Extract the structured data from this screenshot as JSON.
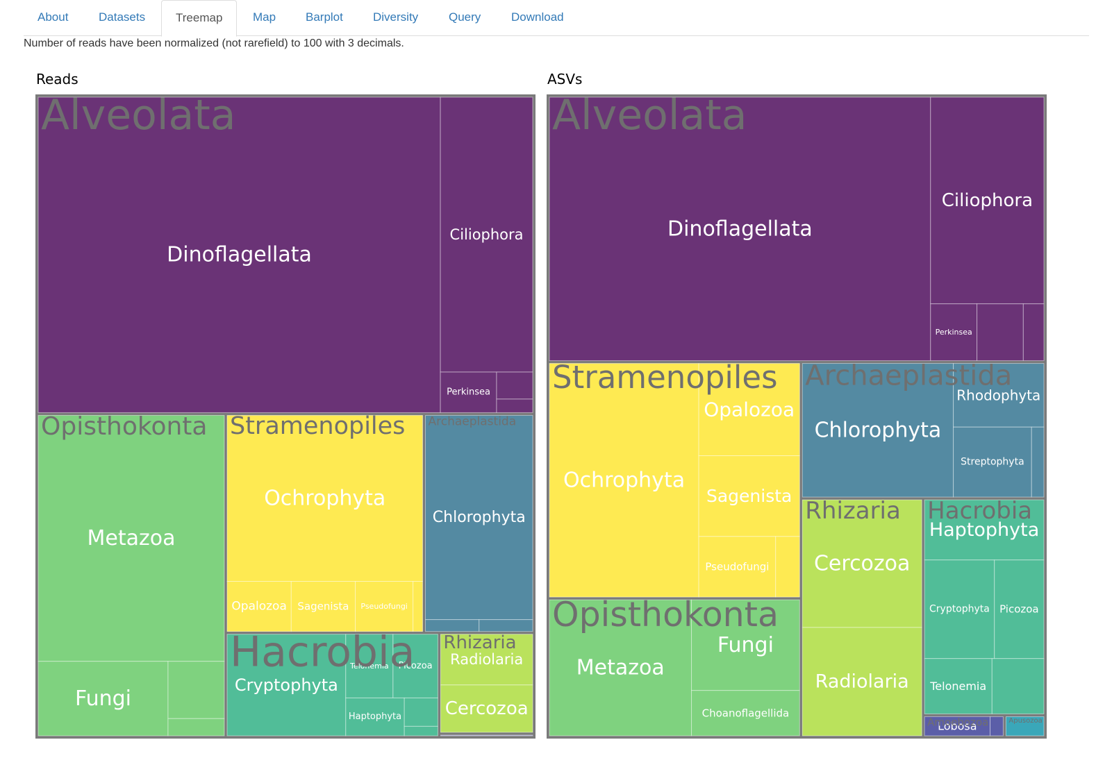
{
  "nav": {
    "tabs": [
      {
        "label": "About",
        "active": false
      },
      {
        "label": "Datasets",
        "active": false
      },
      {
        "label": "Treemap",
        "active": true
      },
      {
        "label": "Map",
        "active": false
      },
      {
        "label": "Barplot",
        "active": false
      },
      {
        "label": "Diversity",
        "active": false
      },
      {
        "label": "Query",
        "active": false
      },
      {
        "label": "Download",
        "active": false
      }
    ]
  },
  "note": "Number of reads have been normalized (not rarefield) to 100 with 3 decimals.",
  "colors": {
    "Alveolata": "#6a3376",
    "Opisthokonta": "#7fd27f",
    "Hacrobia": "#51bd98",
    "Archaeplastida": "#548aa2",
    "Stramenopiles": "#feea52",
    "Rhizaria": "#bae25c",
    "Amoebozoa": "#5b5ea8",
    "Apusozoa": "#3aa7b9",
    "group_label": "#6f6f6f",
    "leaf_label": "#ffffff",
    "border": "#7a7a7a",
    "tab_link": "#337ab7"
  },
  "chart_data": [
    {
      "type": "treemap",
      "title": "Reads",
      "groups": [
        {
          "name": "Alveolata",
          "children": [
            {
              "name": "Dinoflagellata",
              "value": 39.0
            },
            {
              "name": "Ciliophora",
              "value": 7.8
            },
            {
              "name": "Perkinsea",
              "value": 0.7
            },
            {
              "name": "",
              "value": 0.3
            },
            {
              "name": "",
              "value": 0.15
            }
          ]
        },
        {
          "name": "Opisthokonta",
          "children": [
            {
              "name": "Metazoa",
              "value": 14.2
            },
            {
              "name": "Fungi",
              "value": 3.0
            },
            {
              "name": "",
              "value": 1.0
            },
            {
              "name": "",
              "value": 0.3
            }
          ]
        },
        {
          "name": "Stramenopiles",
          "children": [
            {
              "name": "Ochrophyta",
              "value": 10.1
            },
            {
              "name": "Opalozoa",
              "value": 1.0
            },
            {
              "name": "Sagenista",
              "value": 1.0
            },
            {
              "name": "Pseudofungi",
              "value": 0.9
            },
            {
              "name": "",
              "value": 0.15
            }
          ]
        },
        {
          "name": "Archaeplastida",
          "children": [
            {
              "name": "Chlorophyta",
              "value": 6.9
            },
            {
              "name": "",
              "value": 0.2
            },
            {
              "name": "",
              "value": 0.2
            }
          ]
        },
        {
          "name": "Hacrobia",
          "children": [
            {
              "name": "Cryptophyta",
              "value": 3.8
            },
            {
              "name": "Picozoa",
              "value": 0.9
            },
            {
              "name": "Telonemia",
              "value": 0.95
            },
            {
              "name": "Haptophyta",
              "value": 0.7
            },
            {
              "name": "",
              "value": 0.3
            },
            {
              "name": "",
              "value": 0.1
            }
          ]
        },
        {
          "name": "Rhizaria",
          "children": [
            {
              "name": "Cercozoa",
              "value": 1.4
            },
            {
              "name": "Radiolaria",
              "value": 1.5
            }
          ]
        },
        {
          "name": "",
          "children": [
            {
              "name": "",
              "value": 0.1
            }
          ]
        }
      ]
    },
    {
      "type": "treemap",
      "title": "ASVs",
      "groups": [
        {
          "name": "Alveolata",
          "children": [
            {
              "name": "Dinoflagellata",
              "value": 34.3
            },
            {
              "name": "Ciliophora",
              "value": 8.0
            },
            {
              "name": "Perkinsea",
              "value": 0.9
            },
            {
              "name": "",
              "value": 0.9
            },
            {
              "name": "",
              "value": 0.4
            }
          ]
        },
        {
          "name": "Stramenopiles",
          "children": [
            {
              "name": "Ochrophyta",
              "value": 12.0
            },
            {
              "name": "Opalozoa",
              "value": 3.2
            },
            {
              "name": "Sagenista",
              "value": 2.8
            },
            {
              "name": "Pseudofungi",
              "value": 1.6
            },
            {
              "name": "",
              "value": 0.5
            }
          ]
        },
        {
          "name": "Opisthokonta",
          "children": [
            {
              "name": "Metazoa",
              "value": 6.7
            },
            {
              "name": "Fungi",
              "value": 3.4
            },
            {
              "name": "Choanoflagellida",
              "value": 1.7
            }
          ]
        },
        {
          "name": "Rhizaria",
          "children": [
            {
              "name": "Cercozoa",
              "value": 5.3
            },
            {
              "name": "Radiolaria",
              "value": 4.5
            }
          ]
        },
        {
          "name": "Archaeplastida",
          "children": [
            {
              "name": "Chlorophyta",
              "value": 7.0
            },
            {
              "name": "Rhodophyta",
              "value": 2.0
            },
            {
              "name": "Streptophyta",
              "value": 1.9
            },
            {
              "name": "",
              "value": 0.3
            }
          ]
        },
        {
          "name": "Hacrobia",
          "children": [
            {
              "name": "Haptophyta",
              "value": 2.5
            },
            {
              "name": "Cryptophyta",
              "value": 2.4
            },
            {
              "name": "Picozoa",
              "value": 1.7
            },
            {
              "name": "Telonemia",
              "value": 1.3
            },
            {
              "name": "",
              "value": 1.0
            }
          ]
        },
        {
          "name": "Amoebozoa",
          "children": [
            {
              "name": "Lobosa",
              "value": 0.5
            },
            {
              "name": "",
              "value": 0.1
            }
          ]
        },
        {
          "name": "Apusozoa",
          "children": [
            {
              "name": "",
              "value": 0.3
            }
          ]
        }
      ]
    }
  ]
}
